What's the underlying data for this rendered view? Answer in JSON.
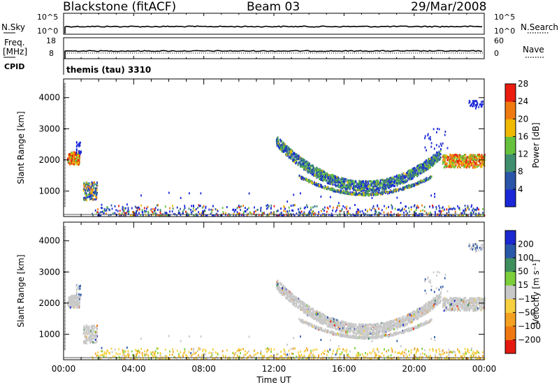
{
  "header": {
    "station": "Blackstone (fitACF)",
    "beam": "Beam 03",
    "date": "29/Mar/2008"
  },
  "panel_labels": {
    "nsky": "N.Sky",
    "nsky_ticks": [
      "10^5",
      "10^0"
    ],
    "nsearch": "N.Search",
    "nsearch_ticks": [
      "10^5",
      "10^0"
    ],
    "freq": "Freq.",
    "freq_unit": "[MHz]",
    "freq_ticks": [
      "18",
      "8"
    ],
    "nave": "Nave",
    "nave_ticks": [
      "60",
      "0"
    ],
    "cpid": "CPID",
    "cpid_text": "themis (tau) 3310"
  },
  "chart_data": [
    {
      "type": "heatmap",
      "name": "power",
      "ylabel": "Slant Range [km]",
      "yticks": [
        1000,
        2000,
        3000,
        4000
      ],
      "ylim": [
        180,
        4600
      ],
      "colorbar_label": "Power [dB]",
      "colorbar_ticks": [
        "4",
        "8",
        "12",
        "16",
        "20",
        "24",
        "28"
      ],
      "colors": [
        "#1a28d8",
        "#2a55a8",
        "#3f8f6e",
        "#66c23d",
        "#f0b800",
        "#ef7a10",
        "#ea1c10"
      ]
    },
    {
      "type": "heatmap",
      "name": "velocity",
      "ylabel": "Slant Range [km]",
      "yticks": [
        1000,
        2000,
        3000,
        4000
      ],
      "ylim": [
        180,
        4600
      ],
      "colorbar_label": "Velocity [m s⁻¹]",
      "colorbar_ticks": [
        "-200",
        "-100",
        "-50",
        "-15",
        "15",
        "50",
        "100",
        "200"
      ],
      "colors": [
        "#e41a10",
        "#ef7810",
        "#f4a020",
        "#f7d040",
        "#c8c8c8",
        "#7ccf3a",
        "#3f8f5e",
        "#2a58a8",
        "#1a28d0"
      ],
      "xlabel": "Time UT",
      "xticks": [
        "00:00",
        "04:00",
        "08:00",
        "12:00",
        "16:00",
        "20:00",
        "00:00"
      ],
      "xlim_hours": [
        0,
        24
      ]
    }
  ]
}
